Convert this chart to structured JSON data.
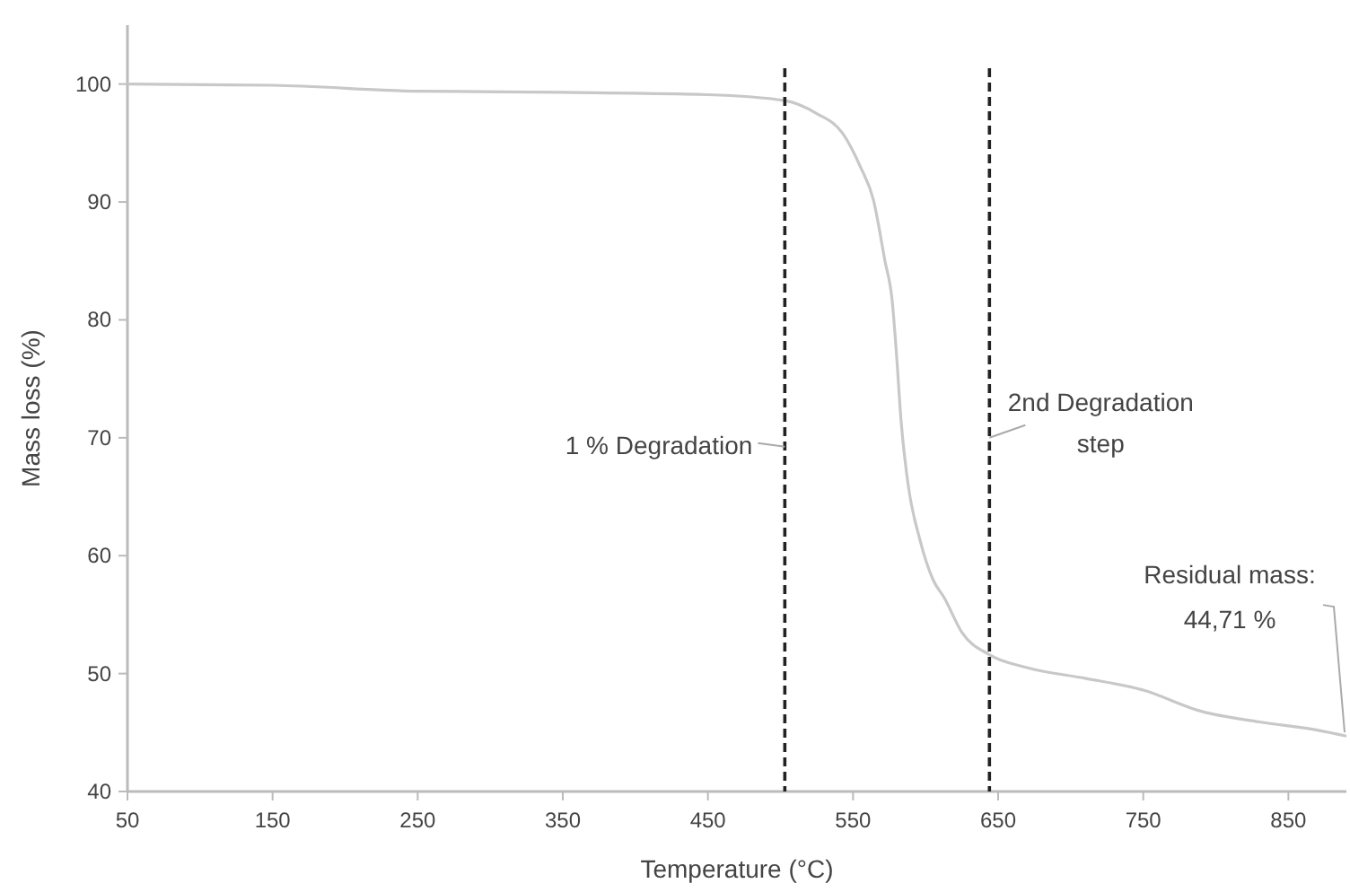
{
  "chart_data": {
    "type": "line",
    "xlabel": "Temperature (°C)",
    "ylabel": "Mass loss (%)",
    "xlim": [
      50,
      890
    ],
    "xticks": [
      50,
      150,
      250,
      350,
      450,
      550,
      650,
      750,
      850
    ],
    "ylim": [
      40,
      105
    ],
    "yticks": [
      40,
      50,
      60,
      70,
      80,
      90,
      100
    ],
    "grid": false,
    "marker": "none",
    "line_style": "solid",
    "series": [
      {
        "color": "#c8c8c8",
        "x": [
          50,
          150,
          250,
          350,
          450,
          503,
          525,
          543,
          555,
          564,
          572,
          577,
          580,
          583,
          588,
          596,
          605,
          613,
          625,
          644,
          670,
          710,
          750,
          790,
          830,
          870,
          890
        ],
        "values": [
          100,
          99.9,
          99.4,
          99.3,
          99.1,
          98.6,
          97.5,
          95.8,
          93,
          90.2,
          85,
          81.6,
          77,
          71.6,
          66,
          61.4,
          58,
          56.4,
          53.5,
          51.6,
          50.5,
          49.6,
          48.6,
          46.8,
          45.9,
          45.2,
          44.7
        ]
      }
    ],
    "ref_lines": [
      {
        "axis": "x",
        "value": 503,
        "label": "1 % Degradation",
        "color": "#222222",
        "line_style": "dashed"
      },
      {
        "axis": "x",
        "value": 644,
        "label": "2nd Degradation step",
        "color": "#222222",
        "line_style": "dashed"
      }
    ],
    "annotations": [
      {
        "text": "Residual mass: 44,71 %",
        "x": 890,
        "y": 44.71
      }
    ]
  }
}
